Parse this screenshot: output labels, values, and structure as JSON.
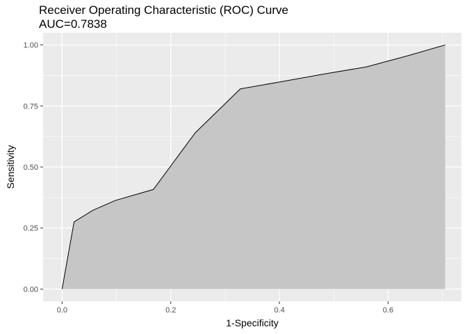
{
  "chart_data": {
    "type": "area",
    "title": "Receiver Operating Characteristic (ROC) Curve",
    "subtitle": "AUC=0.7838",
    "xlabel": "1-Specificity",
    "ylabel": "Sensitivity",
    "xlim": [
      -0.035,
      0.735
    ],
    "ylim": [
      -0.05,
      1.05
    ],
    "xticks": [
      0.0,
      0.2,
      0.4,
      0.6
    ],
    "xtick_labels": [
      "0.0",
      "0.2",
      "0.4",
      "0.6"
    ],
    "yticks": [
      0.0,
      0.25,
      0.5,
      0.75,
      1.0
    ],
    "ytick_labels": [
      "0.00",
      "0.25",
      "0.50",
      "0.75",
      "1.00"
    ],
    "grid": true,
    "colors": {
      "panel": "#EBEBEB",
      "grid": "#FFFFFF",
      "fill": "#C6C6C6",
      "line": "#000000"
    },
    "series": [
      {
        "x": [
          0.0,
          0.022,
          0.056,
          0.098,
          0.168,
          0.245,
          0.328,
          0.4,
          0.48,
          0.56,
          0.635,
          0.705
        ],
        "y": [
          0.0,
          0.275,
          0.322,
          0.363,
          0.408,
          0.64,
          0.82,
          0.848,
          0.88,
          0.91,
          0.955,
          1.0
        ]
      }
    ]
  }
}
